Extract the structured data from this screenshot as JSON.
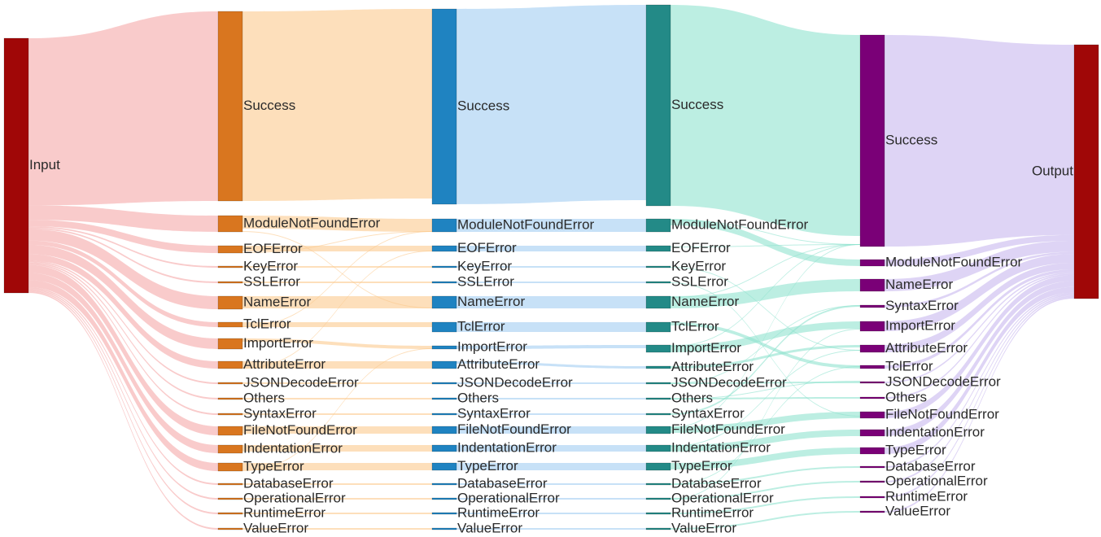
{
  "stages": [
    {
      "name": "input",
      "color": "#a00707",
      "link_color": "#f5a8a8"
    },
    {
      "name": "stage-1",
      "color": "#d9761f",
      "link_color": "#fcc98e"
    },
    {
      "name": "stage-2",
      "color": "#1f83c1",
      "link_color": "#a2cdf2"
    },
    {
      "name": "stage-3",
      "color": "#238a87",
      "link_color": "#8fe3cf"
    },
    {
      "name": "stage-4",
      "color": "#7a0077",
      "link_color": "#c8b8ef"
    },
    {
      "name": "output",
      "color": "#a00707",
      "link_color": ""
    }
  ],
  "labels": {
    "input": "Input",
    "output": "Output",
    "stage1": [
      "Success",
      "ModuleNotFoundError",
      "EOFError",
      "KeyError",
      "SSLError",
      "NameError",
      "TclError",
      "ImportError",
      "AttributeError",
      "JSONDecodeError",
      "Others",
      "SyntaxError",
      "FileNotFoundError",
      "IndentationError",
      "TypeError",
      "DatabaseError",
      "OperationalError",
      "RuntimeError",
      "ValueError"
    ],
    "stage2": [
      "Success",
      "ModuleNotFoundError",
      "EOFError",
      "KeyError",
      "SSLError",
      "NameError",
      "TclError",
      "ImportError",
      "AttributeError",
      "JSONDecodeError",
      "Others",
      "SyntaxError",
      "FileNotFoundError",
      "IndentationError",
      "TypeError",
      "DatabaseError",
      "OperationalError",
      "RuntimeError",
      "ValueError"
    ],
    "stage3": [
      "Success",
      "ModuleNotFoundError",
      "EOFError",
      "KeyError",
      "SSLError",
      "NameError",
      "TclError",
      "ImportError",
      "AttributeError",
      "JSONDecodeError",
      "Others",
      "SyntaxError",
      "FileNotFoundError",
      "IndentationError",
      "TypeError",
      "DatabaseError",
      "OperationalError",
      "RuntimeError",
      "ValueError"
    ],
    "stage4": [
      "Success",
      "ModuleNotFoundError",
      "NameError",
      "SyntaxError",
      "ImportError",
      "AttributeError",
      "TclError",
      "JSONDecodeError",
      "Others",
      "FileNotFoundError",
      "IndentationError",
      "TypeError",
      "DatabaseError",
      "OperationalError",
      "RuntimeError",
      "ValueError"
    ]
  }
}
